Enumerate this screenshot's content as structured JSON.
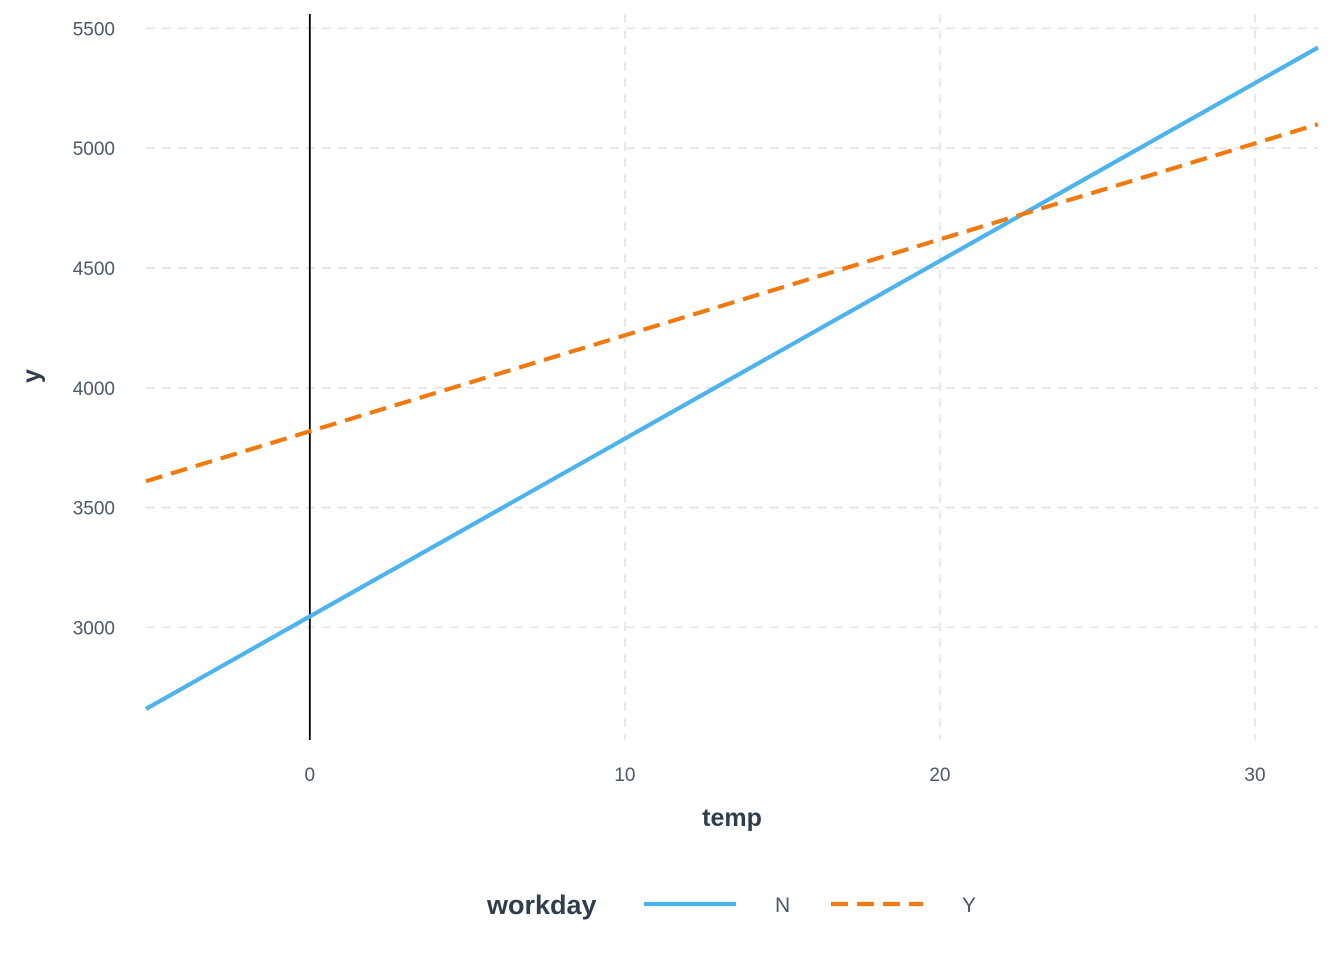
{
  "chart_data": {
    "type": "line",
    "xlabel": "temp",
    "ylabel": "y",
    "xlim": [
      -5.2,
      32
    ],
    "ylim": [
      2530,
      5560
    ],
    "x_ticks": [
      0,
      10,
      20,
      30
    ],
    "y_ticks": [
      3000,
      3500,
      4000,
      4500,
      5000,
      5500
    ],
    "x_tick_labels": [
      "0",
      "10",
      "20",
      "30"
    ],
    "y_tick_labels": [
      "3000",
      "3500",
      "4000",
      "4500",
      "5000",
      "5500"
    ],
    "grid": true,
    "vline_x": 0,
    "legend": {
      "title": "workday",
      "position": "bottom"
    },
    "series": [
      {
        "name": "N",
        "color": "#4db3ef",
        "style": "solid",
        "x": [
          -5.2,
          32
        ],
        "y": [
          2660,
          5420
        ]
      },
      {
        "name": "Y",
        "color": "#f07a10",
        "style": "dashed",
        "x": [
          -5.2,
          32
        ],
        "y": [
          3610,
          5100
        ]
      }
    ]
  }
}
